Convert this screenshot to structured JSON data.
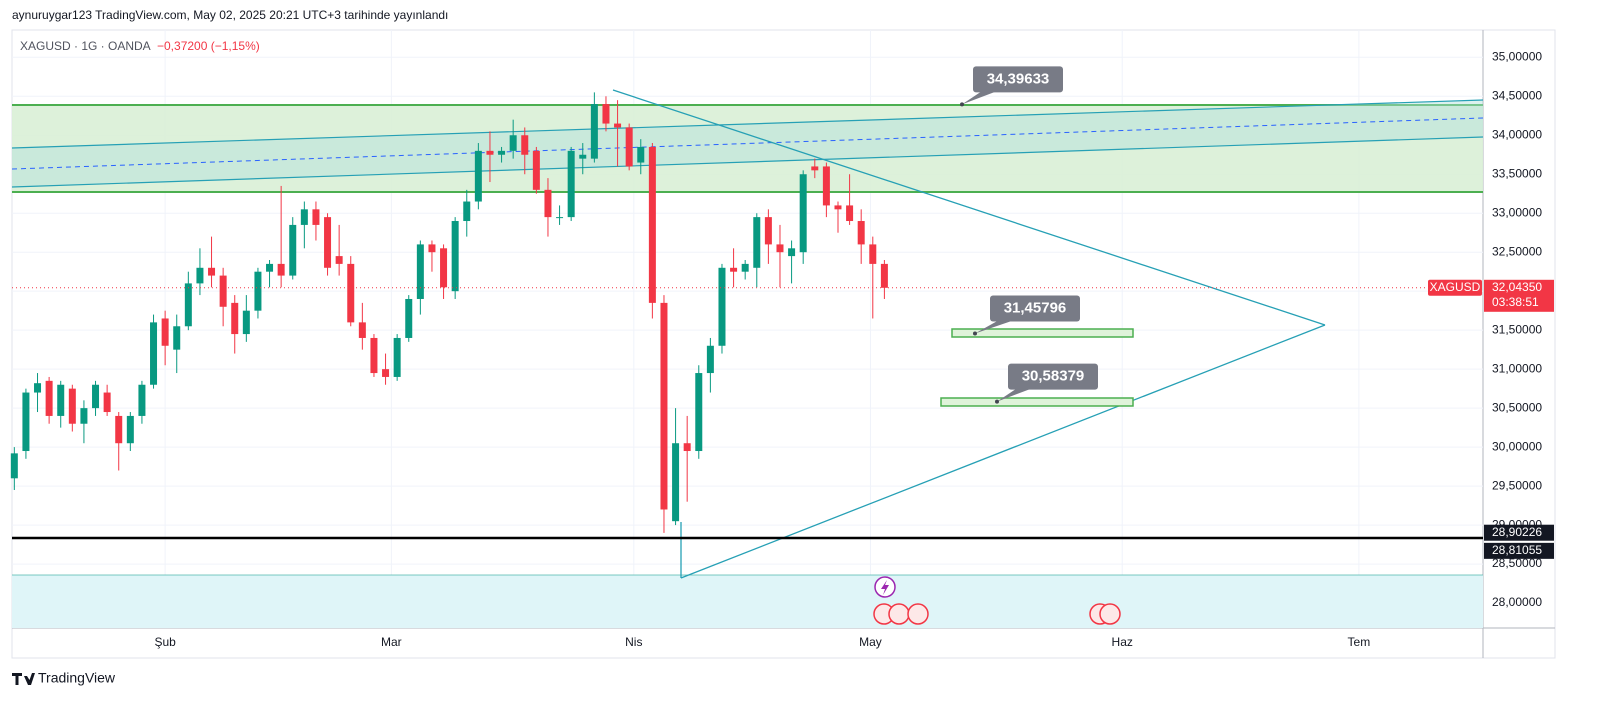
{
  "chart_data": {
    "type": "candlestick",
    "header": "aynuruygar123 TradingView.com, May 02, 2025 20:21 UTC+3 tarihinde yayınlandı",
    "symbol": "XAGUSD · 1G · OANDA",
    "change": "−0,37200 (−1,15%)",
    "brand": "TradingView",
    "up_color": "#089981",
    "down_color": "#f23645",
    "xlim": [
      -0.2,
      126.6
    ],
    "xticks": [
      {
        "value": 13,
        "label": "Şub"
      },
      {
        "value": 32.5,
        "label": "Mar"
      },
      {
        "value": 53.4,
        "label": "Nis"
      },
      {
        "value": 73.8,
        "label": "May"
      },
      {
        "value": 95.5,
        "label": "Haz"
      },
      {
        "value": 115.9,
        "label": "Tem"
      }
    ],
    "ylim": [
      27.68,
      35.35
    ],
    "yticks": [
      {
        "value": 28,
        "label": "28,00000"
      },
      {
        "value": 28.5,
        "label": "28,50000"
      },
      {
        "value": 29,
        "label": "29,00000"
      },
      {
        "value": 29.5,
        "label": "29,50000"
      },
      {
        "value": 30,
        "label": "30,00000"
      },
      {
        "value": 30.5,
        "label": "30,50000"
      },
      {
        "value": 31,
        "label": "31,00000"
      },
      {
        "value": 31.5,
        "label": "31,50000"
      },
      {
        "value": 32,
        "label": "32,00000"
      },
      {
        "value": 32.5,
        "label": "32,50000"
      },
      {
        "value": 33,
        "label": "33,00000"
      },
      {
        "value": 33.5,
        "label": "33,50000"
      },
      {
        "value": 34,
        "label": "34,00000"
      },
      {
        "value": 34.5,
        "label": "34,50000"
      },
      {
        "value": 35,
        "label": "35,00000"
      }
    ],
    "candles": [
      [
        29.6,
        30.0,
        29.45,
        29.92
      ],
      [
        29.95,
        30.75,
        29.85,
        30.7
      ],
      [
        30.7,
        30.95,
        30.45,
        30.82
      ],
      [
        30.85,
        30.9,
        30.3,
        30.4
      ],
      [
        30.4,
        30.85,
        30.25,
        30.8
      ],
      [
        30.75,
        30.8,
        30.2,
        30.3
      ],
      [
        30.3,
        30.6,
        30.05,
        30.5
      ],
      [
        30.5,
        30.85,
        30.4,
        30.8
      ],
      [
        30.7,
        30.8,
        30.4,
        30.45
      ],
      [
        30.4,
        30.45,
        29.7,
        30.05
      ],
      [
        30.05,
        30.45,
        29.95,
        30.4
      ],
      [
        30.4,
        30.85,
        30.3,
        30.8
      ],
      [
        30.8,
        31.7,
        30.75,
        31.6
      ],
      [
        31.65,
        31.75,
        31.05,
        31.3
      ],
      [
        31.25,
        31.7,
        30.95,
        31.55
      ],
      [
        31.55,
        32.25,
        31.5,
        32.1
      ],
      [
        32.1,
        32.55,
        31.95,
        32.3
      ],
      [
        32.3,
        32.7,
        32.05,
        32.2
      ],
      [
        32.2,
        32.3,
        31.55,
        31.8
      ],
      [
        31.85,
        31.95,
        31.2,
        31.45
      ],
      [
        31.45,
        31.95,
        31.35,
        31.75
      ],
      [
        31.75,
        32.3,
        31.65,
        32.25
      ],
      [
        32.25,
        32.4,
        32.05,
        32.35
      ],
      [
        32.35,
        33.35,
        32.05,
        32.2
      ],
      [
        32.2,
        32.95,
        32.15,
        32.85
      ],
      [
        32.85,
        33.15,
        32.55,
        33.05
      ],
      [
        33.05,
        33.15,
        32.65,
        32.85
      ],
      [
        32.95,
        33.0,
        32.2,
        32.3
      ],
      [
        32.45,
        32.85,
        32.2,
        32.35
      ],
      [
        32.35,
        32.45,
        31.55,
        31.6
      ],
      [
        31.6,
        31.85,
        31.25,
        31.4
      ],
      [
        31.4,
        31.45,
        30.9,
        30.95
      ],
      [
        31.0,
        31.2,
        30.8,
        30.9
      ],
      [
        30.9,
        31.45,
        30.85,
        31.4
      ],
      [
        31.4,
        31.95,
        31.35,
        31.9
      ],
      [
        31.9,
        32.65,
        31.7,
        32.6
      ],
      [
        32.6,
        32.65,
        32.25,
        32.5
      ],
      [
        32.55,
        32.6,
        31.9,
        32.05
      ],
      [
        32.0,
        32.95,
        31.9,
        32.9
      ],
      [
        32.9,
        33.3,
        32.7,
        33.15
      ],
      [
        33.15,
        33.9,
        33.05,
        33.8
      ],
      [
        33.8,
        34.05,
        33.4,
        33.75
      ],
      [
        33.75,
        33.85,
        33.65,
        33.8
      ],
      [
        33.8,
        34.2,
        33.7,
        34.0
      ],
      [
        34.0,
        34.1,
        33.5,
        33.75
      ],
      [
        33.8,
        33.85,
        33.25,
        33.3
      ],
      [
        33.3,
        33.45,
        32.7,
        32.95
      ],
      [
        32.95,
        33.1,
        32.85,
        32.95
      ],
      [
        32.95,
        33.85,
        32.9,
        33.8
      ],
      [
        33.7,
        33.9,
        33.5,
        33.75
      ],
      [
        33.7,
        34.55,
        33.65,
        34.4
      ],
      [
        34.4,
        34.5,
        34.05,
        34.15
      ],
      [
        34.15,
        34.45,
        33.6,
        34.1
      ],
      [
        34.1,
        34.15,
        33.55,
        33.6
      ],
      [
        33.65,
        33.95,
        33.5,
        33.85
      ],
      [
        33.85,
        33.9,
        31.65,
        31.85
      ],
      [
        31.85,
        31.95,
        28.9,
        29.2
      ],
      [
        29.05,
        30.5,
        29.0,
        30.05
      ],
      [
        30.05,
        30.4,
        29.3,
        29.95
      ],
      [
        29.95,
        31.05,
        29.85,
        30.95
      ],
      [
        30.95,
        31.4,
        30.7,
        31.3
      ],
      [
        31.3,
        32.35,
        31.2,
        32.3
      ],
      [
        32.3,
        32.55,
        32.05,
        32.25
      ],
      [
        32.25,
        32.4,
        32.15,
        32.35
      ],
      [
        32.3,
        33.0,
        32.05,
        32.95
      ],
      [
        32.95,
        33.05,
        32.35,
        32.6
      ],
      [
        32.6,
        32.85,
        32.05,
        32.5
      ],
      [
        32.45,
        32.65,
        32.1,
        32.55
      ],
      [
        32.5,
        33.55,
        32.35,
        33.5
      ],
      [
        33.6,
        33.7,
        33.45,
        33.55
      ],
      [
        33.6,
        33.65,
        32.95,
        33.1
      ],
      [
        33.1,
        33.15,
        32.75,
        33.05
      ],
      [
        33.1,
        33.5,
        32.85,
        32.9
      ],
      [
        32.9,
        33.05,
        32.35,
        32.6
      ],
      [
        32.6,
        32.7,
        31.65,
        32.35
      ],
      [
        32.35,
        32.4,
        31.9,
        32.0435
      ]
    ],
    "last_price": {
      "name": "XAGUSD",
      "value": 32.0435,
      "label": "32,04350",
      "countdown": "03:38:51"
    },
    "callouts": [
      {
        "value": 34.39633,
        "label": "34,39633"
      },
      {
        "value": 31.45796,
        "label": "31,45796"
      },
      {
        "value": 30.58379,
        "label": "30,58379"
      }
    ],
    "level_labels": [
      {
        "value": 28.90226,
        "label": "28,90226"
      },
      {
        "value": 28.81055,
        "label": "28,81055"
      }
    ]
  }
}
